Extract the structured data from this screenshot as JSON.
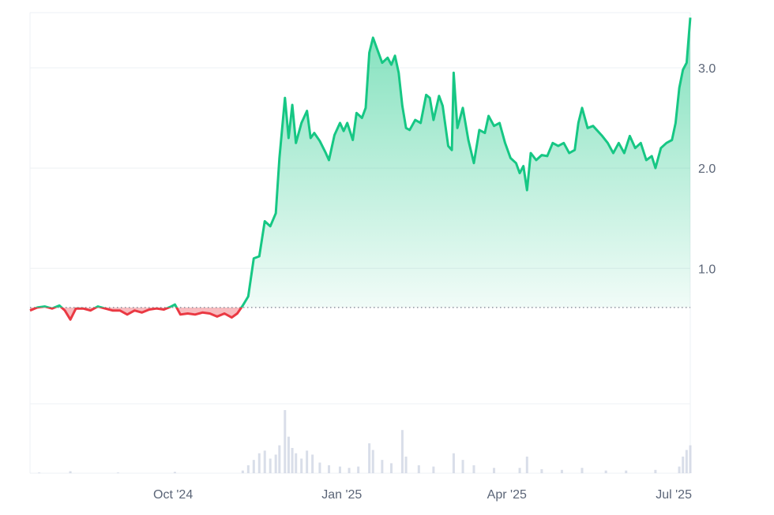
{
  "chart_data": {
    "type": "area",
    "title": "",
    "xlabel": "",
    "ylabel": "",
    "y_axis_position": "right",
    "grid": true,
    "legend": "none",
    "baseline": 0.61,
    "colors": {
      "up_line": "#16c784",
      "down_line": "#ea3943",
      "up_fill": "#16c784",
      "down_fill": "#ea3943",
      "volume": "#cfd6e4",
      "grid": "#eef0f4",
      "tick_text": "#5b6577",
      "baseline": "#7a8290"
    },
    "x_ticks": [
      {
        "label": "Oct '24",
        "date": "2024-10-01"
      },
      {
        "label": "Jan '25",
        "date": "2025-01-01"
      },
      {
        "label": "Apr '25",
        "date": "2025-04-01"
      },
      {
        "label": "Jul '25",
        "date": "2025-07-01"
      }
    ],
    "y_ticks": [
      {
        "label": "1.0",
        "value": 1.0
      },
      {
        "label": "2.0",
        "value": 2.0
      },
      {
        "label": "3.0",
        "value": 3.0
      }
    ],
    "xlim": [
      "2024-07-15",
      "2025-07-10"
    ],
    "ylim": [
      -0.35,
      3.55
    ],
    "series": [
      {
        "points": [
          [
            "2024-07-15",
            0.58
          ],
          [
            "2024-07-19",
            0.61
          ],
          [
            "2024-07-23",
            0.62
          ],
          [
            "2024-07-27",
            0.6
          ],
          [
            "2024-07-31",
            0.63
          ],
          [
            "2024-08-03",
            0.58
          ],
          [
            "2024-08-06",
            0.49
          ],
          [
            "2024-08-09",
            0.6
          ],
          [
            "2024-08-13",
            0.6
          ],
          [
            "2024-08-17",
            0.58
          ],
          [
            "2024-08-21",
            0.62
          ],
          [
            "2024-08-25",
            0.6
          ],
          [
            "2024-08-29",
            0.58
          ],
          [
            "2024-09-02",
            0.58
          ],
          [
            "2024-09-06",
            0.54
          ],
          [
            "2024-09-10",
            0.58
          ],
          [
            "2024-09-14",
            0.56
          ],
          [
            "2024-09-18",
            0.59
          ],
          [
            "2024-09-22",
            0.6
          ],
          [
            "2024-09-26",
            0.59
          ],
          [
            "2024-09-30",
            0.62
          ],
          [
            "2024-10-02",
            0.64
          ],
          [
            "2024-10-05",
            0.54
          ],
          [
            "2024-10-09",
            0.55
          ],
          [
            "2024-10-13",
            0.54
          ],
          [
            "2024-10-17",
            0.56
          ],
          [
            "2024-10-21",
            0.55
          ],
          [
            "2024-10-25",
            0.52
          ],
          [
            "2024-10-29",
            0.55
          ],
          [
            "2024-11-02",
            0.51
          ],
          [
            "2024-11-05",
            0.55
          ],
          [
            "2024-11-08",
            0.63
          ],
          [
            "2024-11-11",
            0.72
          ],
          [
            "2024-11-14",
            1.1
          ],
          [
            "2024-11-17",
            1.12
          ],
          [
            "2024-11-20",
            1.47
          ],
          [
            "2024-11-23",
            1.42
          ],
          [
            "2024-11-26",
            1.55
          ],
          [
            "2024-11-28",
            2.1
          ],
          [
            "2024-12-01",
            2.7
          ],
          [
            "2024-12-03",
            2.3
          ],
          [
            "2024-12-05",
            2.63
          ],
          [
            "2024-12-07",
            2.25
          ],
          [
            "2024-12-10",
            2.45
          ],
          [
            "2024-12-13",
            2.57
          ],
          [
            "2024-12-15",
            2.3
          ],
          [
            "2024-12-17",
            2.35
          ],
          [
            "2024-12-20",
            2.27
          ],
          [
            "2024-12-23",
            2.16
          ],
          [
            "2024-12-25",
            2.08
          ],
          [
            "2024-12-28",
            2.33
          ],
          [
            "2024-12-31",
            2.45
          ],
          [
            "2025-01-02",
            2.37
          ],
          [
            "2025-01-04",
            2.45
          ],
          [
            "2025-01-07",
            2.28
          ],
          [
            "2025-01-09",
            2.55
          ],
          [
            "2025-01-12",
            2.5
          ],
          [
            "2025-01-14",
            2.6
          ],
          [
            "2025-01-16",
            3.15
          ],
          [
            "2025-01-18",
            3.3
          ],
          [
            "2025-01-20",
            3.2
          ],
          [
            "2025-01-23",
            3.05
          ],
          [
            "2025-01-26",
            3.1
          ],
          [
            "2025-01-28",
            3.03
          ],
          [
            "2025-01-30",
            3.12
          ],
          [
            "2025-02-01",
            2.95
          ],
          [
            "2025-02-03",
            2.62
          ],
          [
            "2025-02-05",
            2.4
          ],
          [
            "2025-02-07",
            2.38
          ],
          [
            "2025-02-10",
            2.48
          ],
          [
            "2025-02-13",
            2.45
          ],
          [
            "2025-02-16",
            2.73
          ],
          [
            "2025-02-18",
            2.7
          ],
          [
            "2025-02-20",
            2.48
          ],
          [
            "2025-02-23",
            2.72
          ],
          [
            "2025-02-25",
            2.62
          ],
          [
            "2025-02-28",
            2.22
          ],
          [
            "2025-03-02",
            2.18
          ],
          [
            "2025-03-03",
            2.95
          ],
          [
            "2025-03-05",
            2.4
          ],
          [
            "2025-03-08",
            2.6
          ],
          [
            "2025-03-11",
            2.28
          ],
          [
            "2025-03-14",
            2.05
          ],
          [
            "2025-03-17",
            2.38
          ],
          [
            "2025-03-20",
            2.35
          ],
          [
            "2025-03-22",
            2.52
          ],
          [
            "2025-03-25",
            2.42
          ],
          [
            "2025-03-28",
            2.45
          ],
          [
            "2025-03-31",
            2.25
          ],
          [
            "2025-04-03",
            2.1
          ],
          [
            "2025-04-06",
            2.05
          ],
          [
            "2025-04-08",
            1.95
          ],
          [
            "2025-04-10",
            2.02
          ],
          [
            "2025-04-12",
            1.78
          ],
          [
            "2025-04-14",
            2.15
          ],
          [
            "2025-04-17",
            2.08
          ],
          [
            "2025-04-20",
            2.13
          ],
          [
            "2025-04-23",
            2.12
          ],
          [
            "2025-04-26",
            2.25
          ],
          [
            "2025-04-29",
            2.22
          ],
          [
            "2025-05-02",
            2.25
          ],
          [
            "2025-05-05",
            2.15
          ],
          [
            "2025-05-08",
            2.18
          ],
          [
            "2025-05-10",
            2.45
          ],
          [
            "2025-05-12",
            2.6
          ],
          [
            "2025-05-15",
            2.4
          ],
          [
            "2025-05-18",
            2.42
          ],
          [
            "2025-05-20",
            2.38
          ],
          [
            "2025-05-23",
            2.32
          ],
          [
            "2025-05-26",
            2.25
          ],
          [
            "2025-05-29",
            2.15
          ],
          [
            "2025-06-01",
            2.25
          ],
          [
            "2025-06-04",
            2.15
          ],
          [
            "2025-06-07",
            2.32
          ],
          [
            "2025-06-10",
            2.2
          ],
          [
            "2025-06-13",
            2.25
          ],
          [
            "2025-06-16",
            2.08
          ],
          [
            "2025-06-19",
            2.12
          ],
          [
            "2025-06-21",
            2.0
          ],
          [
            "2025-06-24",
            2.2
          ],
          [
            "2025-06-27",
            2.25
          ],
          [
            "2025-06-30",
            2.28
          ],
          [
            "2025-07-02",
            2.45
          ],
          [
            "2025-07-04",
            2.8
          ],
          [
            "2025-07-06",
            2.98
          ],
          [
            "2025-07-08",
            3.05
          ],
          [
            "2025-07-10",
            3.5
          ]
        ]
      }
    ],
    "volume": [
      [
        "2024-07-20",
        0.01
      ],
      [
        "2024-08-06",
        0.03
      ],
      [
        "2024-09-01",
        0.01
      ],
      [
        "2024-10-02",
        0.02
      ],
      [
        "2024-11-08",
        0.04
      ],
      [
        "2024-11-11",
        0.12
      ],
      [
        "2024-11-14",
        0.2
      ],
      [
        "2024-11-17",
        0.3
      ],
      [
        "2024-11-20",
        0.34
      ],
      [
        "2024-11-23",
        0.22
      ],
      [
        "2024-11-26",
        0.28
      ],
      [
        "2024-11-28",
        0.42
      ],
      [
        "2024-12-01",
        0.95
      ],
      [
        "2024-12-03",
        0.55
      ],
      [
        "2024-12-05",
        0.38
      ],
      [
        "2024-12-07",
        0.3
      ],
      [
        "2024-12-10",
        0.22
      ],
      [
        "2024-12-13",
        0.34
      ],
      [
        "2024-12-16",
        0.28
      ],
      [
        "2024-12-20",
        0.16
      ],
      [
        "2024-12-25",
        0.12
      ],
      [
        "2024-12-31",
        0.1
      ],
      [
        "2025-01-05",
        0.08
      ],
      [
        "2025-01-10",
        0.1
      ],
      [
        "2025-01-16",
        0.45
      ],
      [
        "2025-01-18",
        0.35
      ],
      [
        "2025-01-23",
        0.2
      ],
      [
        "2025-01-28",
        0.15
      ],
      [
        "2025-02-03",
        0.65
      ],
      [
        "2025-02-05",
        0.25
      ],
      [
        "2025-02-12",
        0.12
      ],
      [
        "2025-02-20",
        0.1
      ],
      [
        "2025-03-03",
        0.3
      ],
      [
        "2025-03-08",
        0.2
      ],
      [
        "2025-03-14",
        0.12
      ],
      [
        "2025-03-25",
        0.08
      ],
      [
        "2025-04-08",
        0.08
      ],
      [
        "2025-04-12",
        0.25
      ],
      [
        "2025-04-20",
        0.06
      ],
      [
        "2025-05-01",
        0.05
      ],
      [
        "2025-05-12",
        0.08
      ],
      [
        "2025-05-25",
        0.04
      ],
      [
        "2025-06-05",
        0.04
      ],
      [
        "2025-06-21",
        0.05
      ],
      [
        "2025-07-04",
        0.1
      ],
      [
        "2025-07-06",
        0.25
      ],
      [
        "2025-07-08",
        0.35
      ],
      [
        "2025-07-10",
        0.42
      ]
    ]
  }
}
